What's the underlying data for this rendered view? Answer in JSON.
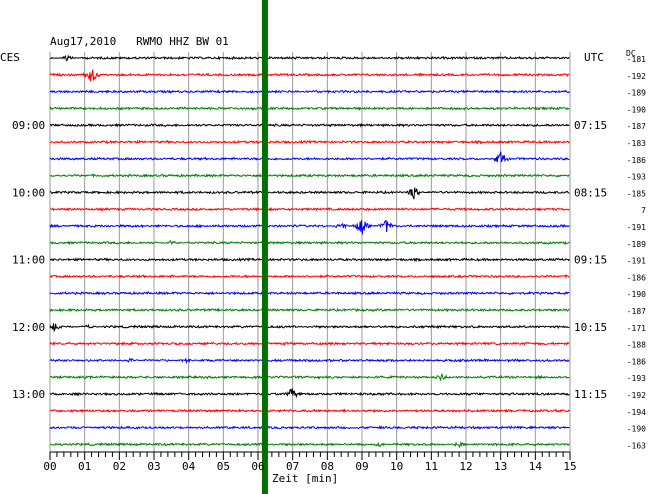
{
  "header": {
    "title": "Aug17,2010   RWMO HHZ BW 01",
    "left_tz": "CES",
    "right_tz": "UTC",
    "dc_label": "DC"
  },
  "chart_data": {
    "type": "line",
    "title": "Aug17,2010   RWMO HHZ BW 01",
    "xlabel": "Zeit [min]",
    "xlim": [
      0,
      15
    ],
    "x_ticks": [
      "00",
      "01",
      "02",
      "03",
      "04",
      "05",
      "06",
      "07",
      "08",
      "09",
      "10",
      "11",
      "12",
      "13",
      "14",
      "15"
    ],
    "trace_colors": [
      "#000000",
      "#ff0000",
      "#0000ff",
      "#008000"
    ],
    "left_times": [
      {
        "trace": 4,
        "label": "09:00"
      },
      {
        "trace": 8,
        "label": "10:00"
      },
      {
        "trace": 12,
        "label": "11:00"
      },
      {
        "trace": 16,
        "label": "12:00"
      },
      {
        "trace": 20,
        "label": "13:00"
      }
    ],
    "right_times": [
      {
        "trace": 4,
        "label": "07:15"
      },
      {
        "trace": 8,
        "label": "08:15"
      },
      {
        "trace": 12,
        "label": "09:15"
      },
      {
        "trace": 16,
        "label": "10:15"
      },
      {
        "trace": 20,
        "label": "11:15"
      }
    ],
    "dc_offsets": [
      "-181",
      "-192",
      "-189",
      "-190",
      "-187",
      "-183",
      "-186",
      "-193",
      "-185",
      "7",
      "-191",
      "-189",
      "-191",
      "-186",
      "-190",
      "-187",
      "-171",
      "-188",
      "-186",
      "-193",
      "-192",
      "-194",
      "-190",
      "-163"
    ],
    "events": [
      {
        "trace": 0,
        "minute": 0.2,
        "amplitude": 4
      },
      {
        "trace": 0,
        "minute": 0.5,
        "amplitude": 3
      },
      {
        "trace": 1,
        "minute": 1.2,
        "amplitude": 9
      },
      {
        "trace": 6,
        "minute": 13.0,
        "amplitude": 8
      },
      {
        "trace": 8,
        "minute": 10.5,
        "amplitude": 7
      },
      {
        "trace": 10,
        "minute": 8.4,
        "amplitude": 4
      },
      {
        "trace": 10,
        "minute": 9.0,
        "amplitude": 9
      },
      {
        "trace": 10,
        "minute": 9.7,
        "amplitude": 8
      },
      {
        "trace": 11,
        "minute": 3.5,
        "amplitude": 3
      },
      {
        "trace": 16,
        "minute": 0.1,
        "amplitude": 6
      },
      {
        "trace": 16,
        "minute": 1.1,
        "amplitude": 3
      },
      {
        "trace": 18,
        "minute": 2.3,
        "amplitude": 3
      },
      {
        "trace": 18,
        "minute": 3.9,
        "amplitude": 3
      },
      {
        "trace": 19,
        "minute": 11.3,
        "amplitude": 4
      },
      {
        "trace": 20,
        "minute": 7.0,
        "amplitude": 8
      },
      {
        "trace": 23,
        "minute": 9.5,
        "amplitude": 3
      },
      {
        "trace": 23,
        "minute": 11.8,
        "amplitude": 3
      }
    ],
    "marker": {
      "minute": 6.2,
      "color": "#007000"
    },
    "grid": true
  }
}
